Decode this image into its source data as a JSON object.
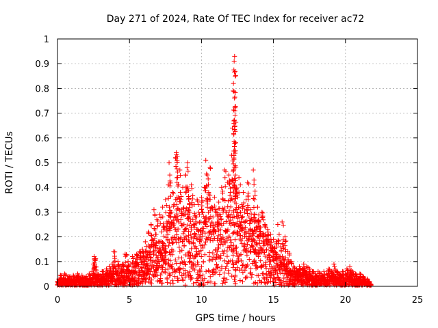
{
  "chart_data": {
    "type": "scatter",
    "title": "Day 271 of 2024, Rate Of TEC Index for receiver ac72",
    "xlabel": "GPS time / hours",
    "ylabel": "ROTI / TECUs",
    "xlim": [
      0,
      25
    ],
    "ylim": [
      0,
      1
    ],
    "xticks": [
      0,
      5,
      10,
      15,
      20,
      25
    ],
    "yticks": [
      0,
      0.1,
      0.2,
      0.3,
      0.4,
      0.5,
      0.6,
      0.7,
      0.8,
      0.9,
      1
    ],
    "ytick_labels": [
      "0",
      "0.1",
      "0.2",
      "0.3",
      "0.4",
      "0.5",
      "0.6",
      "0.7",
      "0.8",
      "0.9",
      "1"
    ],
    "grid": true,
    "marker": "+",
    "color": "#ff0000",
    "series": [
      {
        "points": [
          [
            0.0,
            0.02
          ],
          [
            0.1,
            0.03
          ],
          [
            0.2,
            0.045
          ],
          [
            0.3,
            0.02
          ],
          [
            0.4,
            0.035
          ],
          [
            0.5,
            0.05
          ],
          [
            0.6,
            0.02
          ],
          [
            0.7,
            0.03
          ],
          [
            0.8,
            0.04
          ],
          [
            0.9,
            0.025
          ],
          [
            1.0,
            0.03
          ],
          [
            1.1,
            0.045
          ],
          [
            1.2,
            0.02
          ],
          [
            1.3,
            0.035
          ],
          [
            1.4,
            0.05
          ],
          [
            1.5,
            0.025
          ],
          [
            1.6,
            0.03
          ],
          [
            1.7,
            0.045
          ],
          [
            1.8,
            0.02
          ],
          [
            1.9,
            0.035
          ],
          [
            2.0,
            0.04
          ],
          [
            2.1,
            0.025
          ],
          [
            2.2,
            0.05
          ],
          [
            2.3,
            0.03
          ],
          [
            2.4,
            0.06
          ],
          [
            2.5,
            0.09
          ],
          [
            2.55,
            0.12
          ],
          [
            2.6,
            0.08
          ],
          [
            2.7,
            0.04
          ],
          [
            2.8,
            0.05
          ],
          [
            2.9,
            0.03
          ],
          [
            3.0,
            0.045
          ],
          [
            3.1,
            0.06
          ],
          [
            3.2,
            0.04
          ],
          [
            3.3,
            0.05
          ],
          [
            3.4,
            0.07
          ],
          [
            3.5,
            0.05
          ],
          [
            3.6,
            0.08
          ],
          [
            3.7,
            0.06
          ],
          [
            3.8,
            0.09
          ],
          [
            3.9,
            0.14
          ],
          [
            4.0,
            0.08
          ],
          [
            4.1,
            0.06
          ],
          [
            4.2,
            0.1
          ],
          [
            4.3,
            0.05
          ],
          [
            4.4,
            0.07
          ],
          [
            4.5,
            0.09
          ],
          [
            4.6,
            0.06
          ],
          [
            4.7,
            0.13
          ],
          [
            4.8,
            0.08
          ],
          [
            4.9,
            0.1
          ],
          [
            5.0,
            0.06
          ],
          [
            5.1,
            0.09
          ],
          [
            5.2,
            0.12
          ],
          [
            5.3,
            0.08
          ],
          [
            5.4,
            0.1
          ],
          [
            5.5,
            0.13
          ],
          [
            5.6,
            0.09
          ],
          [
            5.7,
            0.14
          ],
          [
            5.8,
            0.11
          ],
          [
            5.9,
            0.15
          ],
          [
            6.0,
            0.12
          ],
          [
            6.1,
            0.18
          ],
          [
            6.2,
            0.14
          ],
          [
            6.3,
            0.22
          ],
          [
            6.4,
            0.16
          ],
          [
            6.5,
            0.25
          ],
          [
            6.6,
            0.19
          ],
          [
            6.7,
            0.31
          ],
          [
            6.8,
            0.21
          ],
          [
            6.9,
            0.27
          ],
          [
            7.0,
            0.18
          ],
          [
            7.1,
            0.29
          ],
          [
            7.2,
            0.22
          ],
          [
            7.3,
            0.32
          ],
          [
            7.4,
            0.24
          ],
          [
            7.5,
            0.35
          ],
          [
            7.6,
            0.26
          ],
          [
            7.7,
            0.41
          ],
          [
            7.75,
            0.5
          ],
          [
            7.8,
            0.45
          ],
          [
            7.9,
            0.3
          ],
          [
            8.0,
            0.38
          ],
          [
            8.1,
            0.33
          ],
          [
            8.2,
            0.52
          ],
          [
            8.25,
            0.54
          ],
          [
            8.3,
            0.42
          ],
          [
            8.4,
            0.36
          ],
          [
            8.5,
            0.47
          ],
          [
            8.6,
            0.31
          ],
          [
            8.7,
            0.4
          ],
          [
            8.8,
            0.29
          ],
          [
            8.9,
            0.45
          ],
          [
            9.0,
            0.48
          ],
          [
            9.05,
            0.5
          ],
          [
            9.1,
            0.35
          ],
          [
            9.2,
            0.3
          ],
          [
            9.3,
            0.41
          ],
          [
            9.4,
            0.27
          ],
          [
            9.5,
            0.33
          ],
          [
            9.6,
            0.28
          ],
          [
            9.7,
            0.35
          ],
          [
            9.8,
            0.3
          ],
          [
            9.9,
            0.26
          ],
          [
            10.0,
            0.36
          ],
          [
            10.1,
            0.3
          ],
          [
            10.2,
            0.4
          ],
          [
            10.3,
            0.51
          ],
          [
            10.4,
            0.45
          ],
          [
            10.5,
            0.38
          ],
          [
            10.6,
            0.48
          ],
          [
            10.7,
            0.32
          ],
          [
            10.8,
            0.28
          ],
          [
            10.9,
            0.36
          ],
          [
            11.0,
            0.3
          ],
          [
            11.1,
            0.26
          ],
          [
            11.2,
            0.34
          ],
          [
            11.3,
            0.29
          ],
          [
            11.4,
            0.4
          ],
          [
            11.5,
            0.35
          ],
          [
            11.6,
            0.47
          ],
          [
            11.7,
            0.3
          ],
          [
            11.8,
            0.42
          ],
          [
            11.9,
            0.45
          ],
          [
            12.0,
            0.38
          ],
          [
            12.1,
            0.53
          ],
          [
            12.15,
            0.64
          ],
          [
            12.2,
            0.79
          ],
          [
            12.22,
            0.82
          ],
          [
            12.25,
            0.875
          ],
          [
            12.27,
            0.91
          ],
          [
            12.3,
            0.93
          ],
          [
            12.32,
            0.71
          ],
          [
            12.35,
            0.45
          ],
          [
            12.4,
            0.39
          ],
          [
            12.5,
            0.36
          ],
          [
            12.6,
            0.44
          ],
          [
            12.7,
            0.41
          ],
          [
            12.8,
            0.33
          ],
          [
            12.9,
            0.38
          ],
          [
            13.0,
            0.3
          ],
          [
            13.1,
            0.35
          ],
          [
            13.2,
            0.42
          ],
          [
            13.3,
            0.28
          ],
          [
            13.4,
            0.31
          ],
          [
            13.5,
            0.27
          ],
          [
            13.6,
            0.47
          ],
          [
            13.65,
            0.43
          ],
          [
            13.7,
            0.29
          ],
          [
            13.8,
            0.24
          ],
          [
            13.9,
            0.32
          ],
          [
            14.0,
            0.26
          ],
          [
            14.1,
            0.22
          ],
          [
            14.2,
            0.3
          ],
          [
            14.3,
            0.21
          ],
          [
            14.4,
            0.25
          ],
          [
            14.5,
            0.19
          ],
          [
            14.6,
            0.23
          ],
          [
            14.7,
            0.18
          ],
          [
            14.8,
            0.21
          ],
          [
            14.9,
            0.16
          ],
          [
            15.0,
            0.19
          ],
          [
            15.1,
            0.14
          ],
          [
            15.2,
            0.18
          ],
          [
            15.3,
            0.25
          ],
          [
            15.4,
            0.12
          ],
          [
            15.5,
            0.16
          ],
          [
            15.6,
            0.26
          ],
          [
            15.7,
            0.11
          ],
          [
            15.8,
            0.2
          ],
          [
            15.9,
            0.09
          ],
          [
            16.0,
            0.14
          ],
          [
            16.1,
            0.07
          ],
          [
            16.2,
            0.1
          ],
          [
            16.3,
            0.06
          ],
          [
            16.4,
            0.08
          ],
          [
            16.5,
            0.05
          ],
          [
            16.6,
            0.07
          ],
          [
            16.7,
            0.06
          ],
          [
            16.8,
            0.08
          ],
          [
            16.9,
            0.05
          ],
          [
            17.0,
            0.07
          ],
          [
            17.1,
            0.09
          ],
          [
            17.2,
            0.06
          ],
          [
            17.3,
            0.08
          ],
          [
            17.4,
            0.05
          ],
          [
            17.5,
            0.07
          ],
          [
            17.6,
            0.04
          ],
          [
            17.7,
            0.06
          ],
          [
            17.8,
            0.03
          ],
          [
            17.9,
            0.05
          ],
          [
            18.0,
            0.04
          ],
          [
            18.1,
            0.06
          ],
          [
            18.2,
            0.03
          ],
          [
            18.3,
            0.05
          ],
          [
            18.4,
            0.04
          ],
          [
            18.5,
            0.06
          ],
          [
            18.6,
            0.03
          ],
          [
            18.7,
            0.05
          ],
          [
            18.8,
            0.07
          ],
          [
            18.9,
            0.04
          ],
          [
            19.0,
            0.06
          ],
          [
            19.1,
            0.05
          ],
          [
            19.2,
            0.09
          ],
          [
            19.3,
            0.04
          ],
          [
            19.4,
            0.06
          ],
          [
            19.5,
            0.03
          ],
          [
            19.6,
            0.05
          ],
          [
            19.7,
            0.04
          ],
          [
            19.8,
            0.06
          ],
          [
            19.9,
            0.03
          ],
          [
            20.0,
            0.05
          ],
          [
            20.1,
            0.07
          ],
          [
            20.2,
            0.04
          ],
          [
            20.3,
            0.08
          ],
          [
            20.4,
            0.05
          ],
          [
            20.5,
            0.06
          ],
          [
            20.6,
            0.03
          ],
          [
            20.7,
            0.05
          ],
          [
            20.8,
            0.04
          ],
          [
            20.9,
            0.03
          ],
          [
            21.0,
            0.05
          ],
          [
            21.1,
            0.02
          ],
          [
            21.2,
            0.04
          ],
          [
            21.3,
            0.03
          ],
          [
            21.4,
            0.02
          ],
          [
            21.5,
            0.03
          ],
          [
            21.6,
            0.02
          ],
          [
            21.7,
            0.01
          ]
        ]
      }
    ]
  }
}
